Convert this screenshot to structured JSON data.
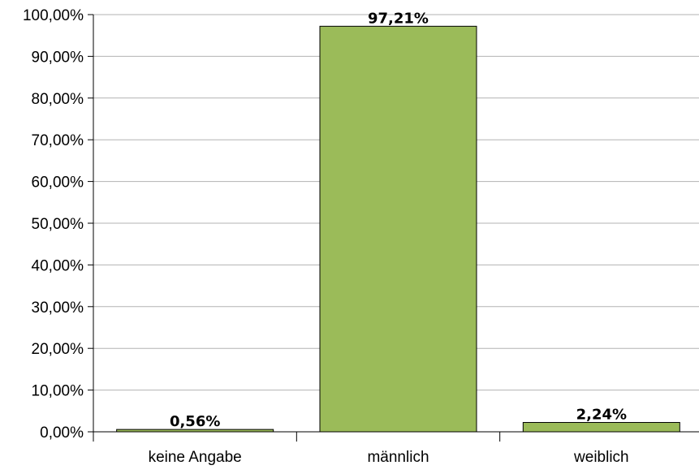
{
  "chart_data": {
    "type": "bar",
    "categories": [
      "keine Angabe",
      "männlich",
      "weiblich"
    ],
    "values": [
      0.56,
      97.21,
      2.24
    ],
    "data_labels": [
      "0,56%",
      "97,21%",
      "2,24%"
    ],
    "ylim": [
      0,
      100
    ],
    "yticks": [
      0,
      10,
      20,
      30,
      40,
      50,
      60,
      70,
      80,
      90,
      100
    ],
    "ytick_labels": [
      "0,00%",
      "10,00%",
      "20,00%",
      "30,00%",
      "40,00%",
      "50,00%",
      "60,00%",
      "70,00%",
      "80,00%",
      "90,00%",
      "100,00%"
    ],
    "title": "",
    "xlabel": "",
    "ylabel": "",
    "grid": true,
    "legend": "none",
    "colors": {
      "bar_fill": "#9bbb59",
      "bar_stroke": "#000000",
      "grid": "#b3b3b3",
      "axis": "#000000"
    }
  }
}
